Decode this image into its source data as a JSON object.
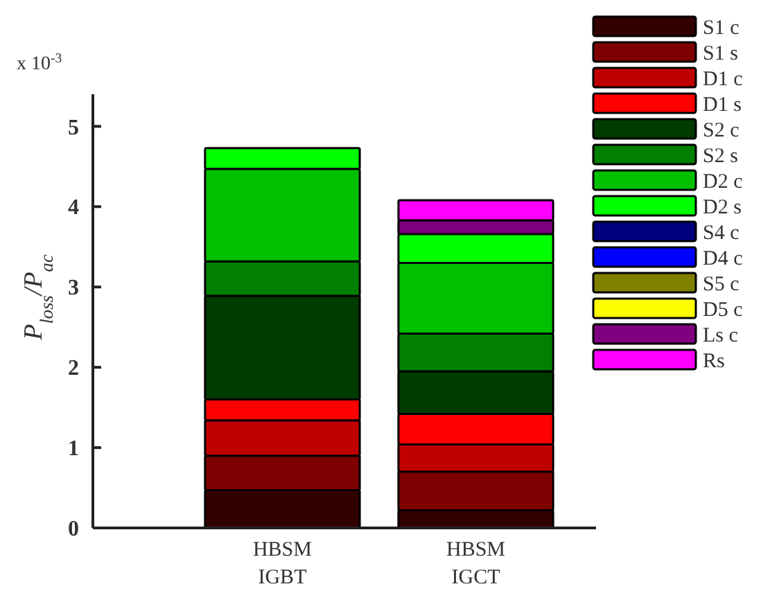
{
  "chart_data": {
    "type": "bar",
    "stacked": true,
    "ylabel": "P$_{loss}$/P$_{ac}$",
    "annotations": [
      "x 10$^{-3}$"
    ],
    "categories": [
      "HBSM IGBT",
      "HBSM IGCT"
    ],
    "ylim": [
      0,
      5.4
    ],
    "yticks": [
      0,
      1,
      2,
      3,
      4,
      5
    ],
    "grid": false,
    "legend": "top right",
    "series": [
      {
        "name": "S1 c",
        "color": "#330000",
        "values": [
          0.47,
          0.22
        ]
      },
      {
        "name": "S1 s",
        "color": "#7f0000",
        "values": [
          0.43,
          0.48
        ]
      },
      {
        "name": "D1 c",
        "color": "#c00000",
        "values": [
          0.44,
          0.34
        ]
      },
      {
        "name": "D1 s",
        "color": "#ff0000",
        "values": [
          0.26,
          0.38
        ]
      },
      {
        "name": "S2 c",
        "color": "#003b00",
        "values": [
          1.29,
          0.53
        ]
      },
      {
        "name": "S2 s",
        "color": "#007f00",
        "values": [
          0.43,
          0.47
        ]
      },
      {
        "name": "D2 c",
        "color": "#00c000",
        "values": [
          1.15,
          0.88
        ]
      },
      {
        "name": "D2 s",
        "color": "#00ff00",
        "values": [
          0.26,
          0.36
        ]
      },
      {
        "name": "S4 c",
        "color": "#00007f",
        "values": [
          0,
          0
        ]
      },
      {
        "name": "D4 c",
        "color": "#0000ff",
        "values": [
          0,
          0
        ]
      },
      {
        "name": "S5 c",
        "color": "#7f7f00",
        "values": [
          0,
          0
        ]
      },
      {
        "name": "D5 c",
        "color": "#ffff00",
        "values": [
          0,
          0
        ]
      },
      {
        "name": "Ls c",
        "color": "#7f007f",
        "values": [
          0,
          0.17
        ]
      },
      {
        "name": "Rs",
        "color": "#ff00ff",
        "values": [
          0,
          0.25
        ]
      }
    ]
  }
}
